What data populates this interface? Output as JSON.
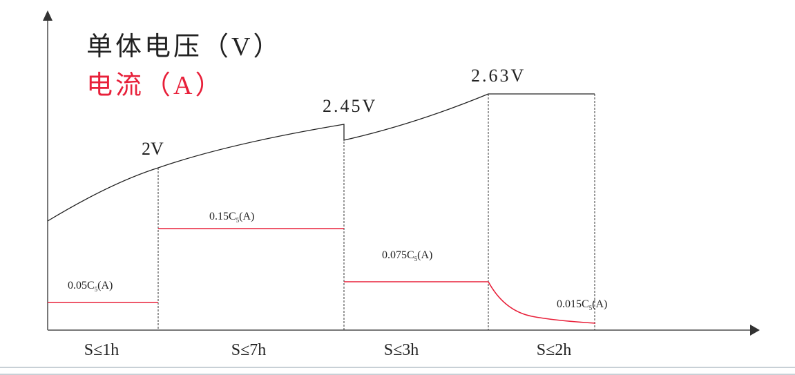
{
  "legend": {
    "voltage_label": "单体电压（V）",
    "current_label": "电流（A）",
    "voltage_color": "#222222",
    "current_color": "#e8203a"
  },
  "voltage_labels": [
    "2V",
    "2.45V",
    "2.63V"
  ],
  "current_labels": [
    {
      "base": "0.05C",
      "sub": "5",
      "unit": "(A)"
    },
    {
      "base": "0.15C",
      "sub": "5",
      "unit": "(A)"
    },
    {
      "base": "0.075C",
      "sub": "5",
      "unit": "(A)"
    },
    {
      "base": "0.015C",
      "sub": "5",
      "unit": "(A)"
    }
  ],
  "stage_durations": [
    "S≤1h",
    "S≤7h",
    "S≤3h",
    "S≤2h"
  ]
}
